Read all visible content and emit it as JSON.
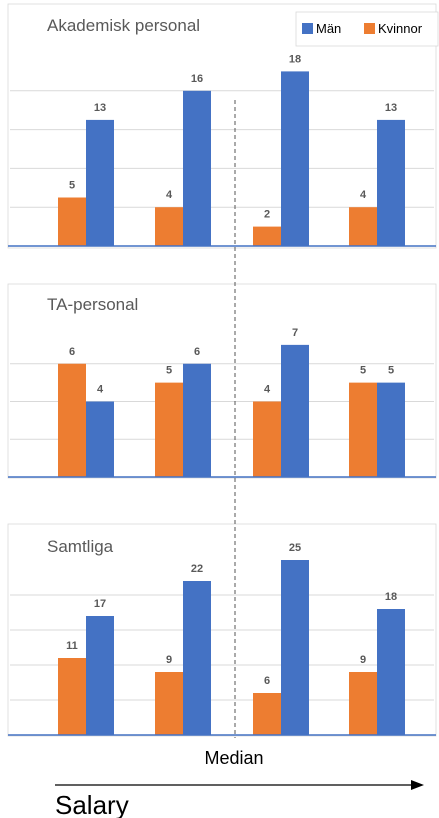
{
  "colors": {
    "man": "#4472c4",
    "kvinna": "#ed7d31",
    "grid": "#d9d9d9",
    "text": "#595959"
  },
  "legend": {
    "man": "Män",
    "kvinna": "Kvinnor"
  },
  "median_label": "Median",
  "salary_label": "Salary",
  "chart_data": [
    {
      "type": "bar",
      "title": "Akademisk personal",
      "categories": [
        "",
        "",
        "",
        ""
      ],
      "series": [
        {
          "name": "Kvinnor",
          "values": [
            5,
            4,
            2,
            4
          ]
        },
        {
          "name": "Män",
          "values": [
            13,
            16,
            18,
            13
          ]
        }
      ],
      "ylim": [
        0,
        20
      ],
      "grid": true
    },
    {
      "type": "bar",
      "title": "TA-personal",
      "categories": [
        "",
        "",
        "",
        ""
      ],
      "series": [
        {
          "name": "Kvinnor",
          "values": [
            6,
            5,
            4,
            5
          ]
        },
        {
          "name": "Män",
          "values": [
            4,
            6,
            7,
            5
          ]
        }
      ],
      "ylim": [
        0,
        8
      ],
      "grid": true
    },
    {
      "type": "bar",
      "title": "Samtliga",
      "categories": [
        "",
        "",
        "",
        ""
      ],
      "series": [
        {
          "name": "Kvinnor",
          "values": [
            11,
            9,
            6,
            9
          ]
        },
        {
          "name": "Män",
          "values": [
            17,
            22,
            25,
            18
          ]
        }
      ],
      "ylim": [
        0,
        25
      ],
      "grid": true
    }
  ]
}
